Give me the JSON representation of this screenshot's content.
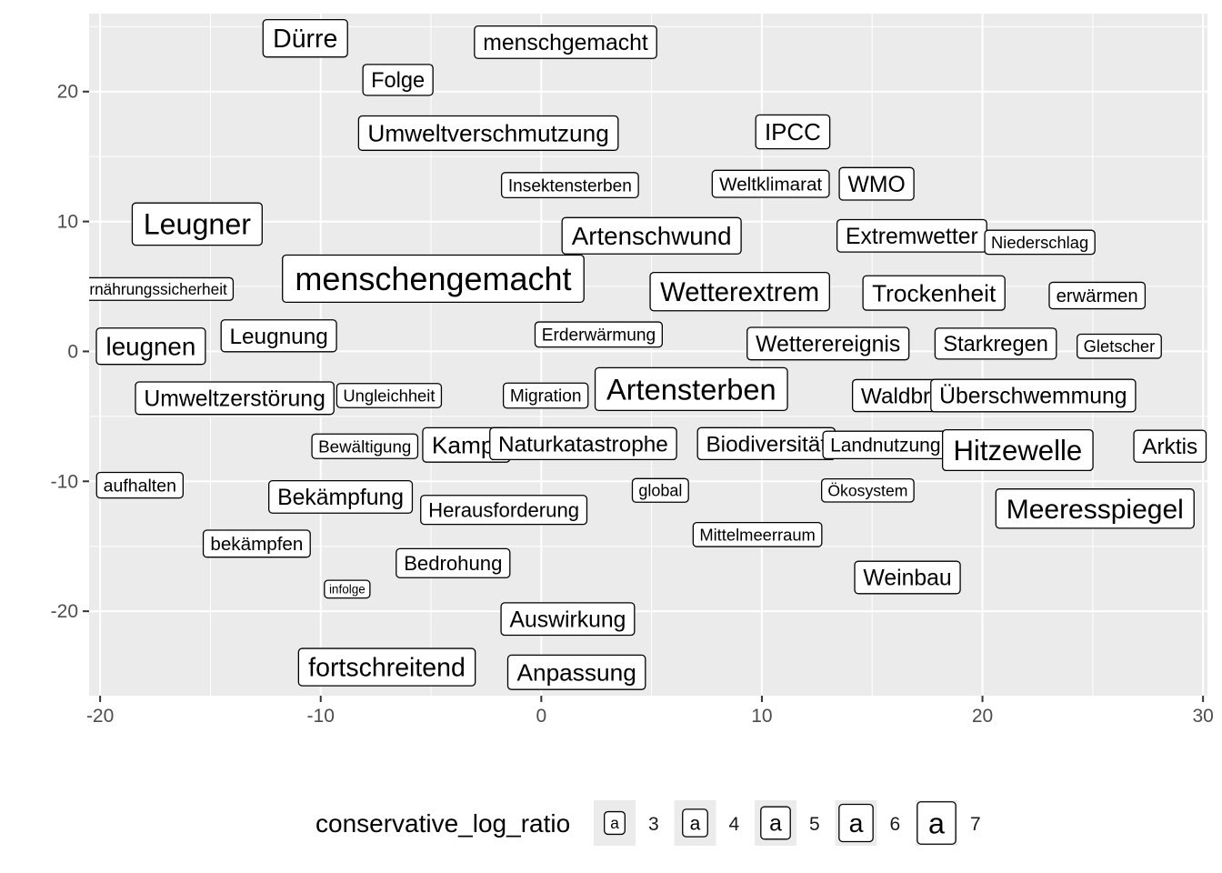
{
  "chart_data": {
    "type": "scatter",
    "subtype": "labelled text scatter",
    "xlim": [
      -20.5,
      30.2
    ],
    "ylim": [
      -26.5,
      26
    ],
    "x_ticks": [
      -20,
      -10,
      0,
      10,
      20,
      30
    ],
    "y_ticks": [
      -20,
      -10,
      0,
      10,
      20
    ],
    "x_tick_labels": [
      "-20",
      "-10",
      "0",
      "10",
      "20",
      "30"
    ],
    "y_tick_labels": [
      "-20",
      "-10",
      "0",
      "10",
      "20"
    ],
    "grid": true,
    "legend_position": "bottom",
    "legend": {
      "title": "conservative_log_ratio",
      "keys": [
        {
          "value": 3,
          "label": "3",
          "glyph": "a"
        },
        {
          "value": 4,
          "label": "4",
          "glyph": "a"
        },
        {
          "value": 5,
          "label": "5",
          "glyph": "a"
        },
        {
          "value": 6,
          "label": "6",
          "glyph": "a"
        },
        {
          "value": 7,
          "label": "7",
          "glyph": "a"
        }
      ]
    },
    "points": [
      {
        "label": "Dürre",
        "x": -10.7,
        "y": 24.1,
        "size": 6.0
      },
      {
        "label": "menschgemacht",
        "x": 1.1,
        "y": 23.8,
        "size": 5.0
      },
      {
        "label": "Folge",
        "x": -6.5,
        "y": 20.9,
        "size": 4.7
      },
      {
        "label": "Umweltverschmutzung",
        "x": -2.4,
        "y": 16.8,
        "size": 5.4
      },
      {
        "label": "IPCC",
        "x": 11.4,
        "y": 16.9,
        "size": 5.3
      },
      {
        "label": "Insektensterben",
        "x": 1.3,
        "y": 12.8,
        "size": 3.5
      },
      {
        "label": "Weltklimarat",
        "x": 10.4,
        "y": 12.9,
        "size": 3.9
      },
      {
        "label": "WMO",
        "x": 15.2,
        "y": 12.9,
        "size": 5.0
      },
      {
        "label": "Leugner",
        "x": -15.6,
        "y": 9.8,
        "size": 7.0
      },
      {
        "label": "Artenschwund",
        "x": 5.0,
        "y": 8.9,
        "size": 5.8
      },
      {
        "label": "Extremwetter",
        "x": 16.8,
        "y": 8.9,
        "size": 5.0
      },
      {
        "label": "Niederschlag",
        "x": 22.6,
        "y": 8.4,
        "size": 3.3
      },
      {
        "label": "Ernährungssicherheit",
        "x": -17.6,
        "y": 4.8,
        "size": 3.0
      },
      {
        "label": "menschengemacht",
        "x": -4.9,
        "y": 5.6,
        "size": 8.0
      },
      {
        "label": "Wetterextrem",
        "x": 9.0,
        "y": 4.6,
        "size": 6.2
      },
      {
        "label": "Trockenheit",
        "x": 17.8,
        "y": 4.5,
        "size": 5.4
      },
      {
        "label": "erwärmen",
        "x": 25.2,
        "y": 4.3,
        "size": 3.8
      },
      {
        "label": "leugnen",
        "x": -17.7,
        "y": 0.4,
        "size": 5.8
      },
      {
        "label": "Leugnung",
        "x": -11.9,
        "y": 1.2,
        "size": 4.9
      },
      {
        "label": "Erderwärmung",
        "x": 2.6,
        "y": 1.3,
        "size": 3.5
      },
      {
        "label": "Wetterereignis",
        "x": 13.0,
        "y": 0.6,
        "size": 5.0
      },
      {
        "label": "Starkregen",
        "x": 20.6,
        "y": 0.6,
        "size": 4.7
      },
      {
        "label": "Gletscher",
        "x": 26.2,
        "y": 0.4,
        "size": 3.3
      },
      {
        "label": "Umweltzerstörung",
        "x": -13.9,
        "y": -3.6,
        "size": 5.0
      },
      {
        "label": "Ungleichheit",
        "x": -6.9,
        "y": -3.4,
        "size": 3.3
      },
      {
        "label": "Migration",
        "x": 0.2,
        "y": -3.4,
        "size": 3.5
      },
      {
        "label": "Artensterben",
        "x": 6.8,
        "y": -2.9,
        "size": 7.1
      },
      {
        "label": "Waldbrand",
        "x": 16.9,
        "y": -3.4,
        "size": 4.9
      },
      {
        "label": "Überschwemmung",
        "x": 22.3,
        "y": -3.4,
        "size": 5.0
      },
      {
        "label": "Bewältigung",
        "x": -8.0,
        "y": -7.3,
        "size": 3.4
      },
      {
        "label": "Kampf",
        "x": -3.4,
        "y": -7.2,
        "size": 5.4
      },
      {
        "label": "Naturkatastrophe",
        "x": 1.9,
        "y": -7.1,
        "size": 4.9
      },
      {
        "label": "Biodiversität",
        "x": 10.2,
        "y": -7.1,
        "size": 4.9
      },
      {
        "label": "Landnutzung",
        "x": 15.6,
        "y": -7.2,
        "size": 4.0
      },
      {
        "label": "Hitzewelle",
        "x": 21.6,
        "y": -7.6,
        "size": 6.7
      },
      {
        "label": "Arktis",
        "x": 28.5,
        "y": -7.3,
        "size": 4.9
      },
      {
        "label": "aufhalten",
        "x": -18.2,
        "y": -10.3,
        "size": 3.6
      },
      {
        "label": "Bekämpfung",
        "x": -9.1,
        "y": -11.2,
        "size": 5.0
      },
      {
        "label": "Herausforderung",
        "x": -1.7,
        "y": -12.2,
        "size": 4.3
      },
      {
        "label": "global",
        "x": 5.4,
        "y": -10.7,
        "size": 3.2
      },
      {
        "label": "Ökosystem",
        "x": 14.8,
        "y": -10.7,
        "size": 3.1
      },
      {
        "label": "Meeresspiegel",
        "x": 25.1,
        "y": -12.1,
        "size": 6.4
      },
      {
        "label": "bekämpfen",
        "x": -12.9,
        "y": -14.8,
        "size": 3.9
      },
      {
        "label": "Mittelmeerraum",
        "x": 9.8,
        "y": -14.1,
        "size": 3.3
      },
      {
        "label": "Bedrohung",
        "x": -4.0,
        "y": -16.3,
        "size": 4.3
      },
      {
        "label": "infolge",
        "x": -8.8,
        "y": -18.3,
        "size": 2.0
      },
      {
        "label": "Weinbau",
        "x": 16.6,
        "y": -17.4,
        "size": 5.0
      },
      {
        "label": "Auswirkung",
        "x": 1.2,
        "y": -20.6,
        "size": 5.0
      },
      {
        "label": "fortschreitend",
        "x": -7.0,
        "y": -24.3,
        "size": 6.0
      },
      {
        "label": "Anpassung",
        "x": 1.6,
        "y": -24.7,
        "size": 5.4
      }
    ]
  }
}
